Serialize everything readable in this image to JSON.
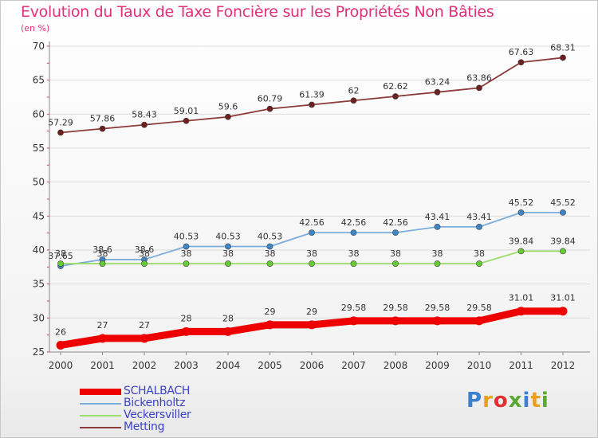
{
  "title": "Evolution du Taux de Taxe Foncière sur les Propriétés Non Bâties",
  "subtitle": "(en %)",
  "logo": {
    "text": "Proxiti",
    "letter_colors": [
      "#3a7fd0",
      "#e8a020",
      "#e03030",
      "#5aa832",
      "#3a7fd0",
      "#e8a020",
      "#5aa832"
    ]
  },
  "chart_data": {
    "type": "line",
    "title": "Evolution du Taux de Taxe Foncière sur les Propriétés Non Bâties",
    "ylabel": "(en %)",
    "xlabel": "",
    "ylim": [
      25,
      70
    ],
    "yticks": [
      25,
      30,
      35,
      40,
      45,
      50,
      55,
      60,
      65,
      70
    ],
    "grid": "horizontal",
    "legend_position": "bottom-left",
    "x": [
      "2000",
      "2001",
      "2002",
      "2003",
      "2004",
      "2005",
      "2006",
      "2007",
      "2008",
      "2009",
      "2010",
      "2011",
      "2012"
    ],
    "series": [
      {
        "name": "SCHALBACH",
        "color": "#ee0000",
        "marker_color": "#ee0000",
        "emphasis": "thick",
        "values": [
          26,
          27,
          27,
          28,
          28,
          29,
          29,
          29.58,
          29.58,
          29.58,
          29.58,
          31.01,
          31.01
        ],
        "labels": [
          "26",
          "27",
          "27",
          "28",
          "28",
          "29",
          "29",
          "29.58",
          "29.58",
          "29.58",
          "29.58",
          "31.01",
          "31.01"
        ]
      },
      {
        "name": "Bickenholtz",
        "color": "#7aaedc",
        "marker_color": "#3f86c6",
        "emphasis": "normal",
        "values": [
          37.65,
          38.6,
          38.6,
          40.53,
          40.53,
          40.53,
          42.56,
          42.56,
          42.56,
          43.41,
          43.41,
          45.52,
          45.52
        ],
        "labels": [
          "37.65",
          "38.6",
          "38.6",
          "40.53",
          "40.53",
          "40.53",
          "42.56",
          "42.56",
          "42.56",
          "43.41",
          "43.41",
          "45.52",
          "45.52"
        ]
      },
      {
        "name": "Veckersviller",
        "color": "#9cdc6a",
        "marker_color": "#66cc33",
        "emphasis": "normal",
        "values": [
          38,
          38,
          38,
          38,
          38,
          38,
          38,
          38,
          38,
          38,
          38,
          39.84,
          39.84
        ],
        "labels": [
          "38",
          "38",
          "38",
          "38",
          "38",
          "38",
          "38",
          "38",
          "38",
          "38",
          "38",
          "39.84",
          "39.84"
        ]
      },
      {
        "name": "Metting",
        "color": "#8c3a3a",
        "marker_color": "#6e1f1f",
        "emphasis": "normal",
        "values": [
          57.29,
          57.86,
          58.43,
          59.01,
          59.6,
          60.79,
          61.39,
          62,
          62.62,
          63.24,
          63.86,
          67.63,
          68.31
        ],
        "labels": [
          "57.29",
          "57.86",
          "58.43",
          "59.01",
          "59.6",
          "60.79",
          "61.39",
          "62",
          "62.62",
          "63.24",
          "63.86",
          "67.63",
          "68.31"
        ]
      }
    ]
  }
}
